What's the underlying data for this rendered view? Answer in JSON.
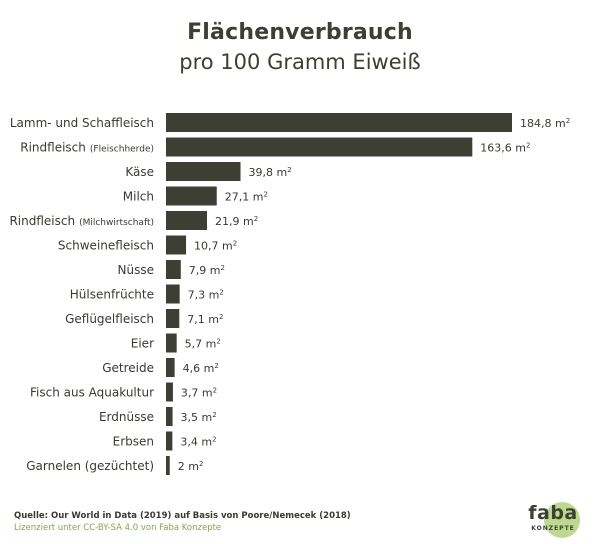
{
  "chart_data": {
    "type": "bar",
    "orientation": "horizontal",
    "title": "Flächenverbrauch",
    "subtitle": "pro 100 Gramm Eiweiß",
    "unit": "m",
    "unit_sup": "2",
    "bar_color": "#3d3f33",
    "categories": [
      {
        "main": "Lamm- und Schaffleisch",
        "sub": ""
      },
      {
        "main": "Rindfleisch",
        "sub": "(Fleischherde)"
      },
      {
        "main": "Käse",
        "sub": ""
      },
      {
        "main": "Milch",
        "sub": ""
      },
      {
        "main": "Rindfleisch",
        "sub": "(Milchwirtschaft)"
      },
      {
        "main": "Schweinefleisch",
        "sub": ""
      },
      {
        "main": "Nüsse",
        "sub": ""
      },
      {
        "main": "Hülsenfrüchte",
        "sub": ""
      },
      {
        "main": "Geflügelfleisch",
        "sub": ""
      },
      {
        "main": "Eier",
        "sub": ""
      },
      {
        "main": "Getreide",
        "sub": ""
      },
      {
        "main": "Fisch aus Aquakultur",
        "sub": ""
      },
      {
        "main": "Erdnüsse",
        "sub": ""
      },
      {
        "main": "Erbsen",
        "sub": ""
      },
      {
        "main": "Garnelen (gezüchtet)",
        "sub": ""
      }
    ],
    "values": [
      184.8,
      163.6,
      39.8,
      27.1,
      21.9,
      10.7,
      7.9,
      7.3,
      7.1,
      5.7,
      4.6,
      3.7,
      3.5,
      3.4,
      2
    ],
    "value_labels": [
      "184,8",
      "163,6",
      "39,8",
      "27,1",
      "21,9",
      "10,7",
      "7,9",
      "7,3",
      "7,1",
      "5,7",
      "4,6",
      "3,7",
      "3,5",
      "3,4",
      "2"
    ]
  },
  "footer": {
    "source": "Quelle: Our World in Data (2019) auf Basis von Poore/Nemecek (2018)",
    "license": "Lizenziert unter CC-BY-SA 4.0 von Faba Konzepte"
  },
  "logo": {
    "name": "faba",
    "sub": "KONZEPTE",
    "circle_color": "#bdd98f"
  }
}
